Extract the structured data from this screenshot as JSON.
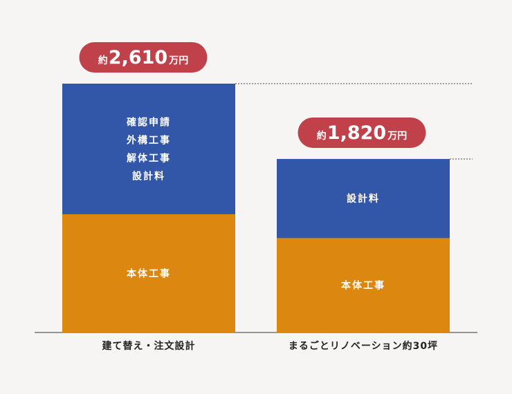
{
  "chart_data": {
    "type": "bar",
    "stacked": true,
    "unit": "万円",
    "categories": [
      "建て替え・注文設計",
      "まるごとリノベーション約30坪"
    ],
    "series": [
      {
        "key": "base",
        "segment_labels": [
          [
            "本体工事"
          ],
          [
            "本体工事"
          ]
        ],
        "values": [
          1240,
          990
        ],
        "color": "#dc870f"
      },
      {
        "key": "other",
        "segment_labels": [
          [
            "確認申請",
            "外構工事",
            "解体工事",
            "設計料"
          ],
          [
            "設計料"
          ]
        ],
        "values": [
          1370,
          830
        ],
        "color": "#3257a8"
      }
    ],
    "totals": [
      {
        "prefix": "約",
        "amount": "2,610",
        "suffix": "万円",
        "value": 2610
      },
      {
        "prefix": "約",
        "amount": "1,820",
        "suffix": "万円",
        "value": 1820
      }
    ],
    "badge_color": "#c1414a",
    "ylim": [
      0,
      2610
    ],
    "grid": false,
    "legend": "none"
  }
}
